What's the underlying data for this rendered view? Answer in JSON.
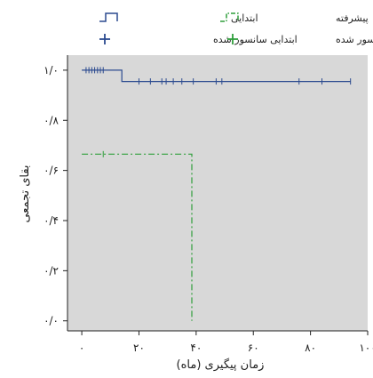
{
  "chart_data": {
    "type": "line",
    "subtype": "kaplan-meier survival curve",
    "xlabel": "زمان پیگیری (ماه)",
    "ylabel": "بقای تجمعی",
    "x_ticks": [
      0,
      20,
      40,
      60,
      80,
      100
    ],
    "x_tick_labels": [
      "۰",
      "۲۰",
      "۴۰",
      "۶۰",
      "۸۰",
      "۱۰۰"
    ],
    "y_ticks": [
      0.0,
      0.2,
      0.4,
      0.6,
      0.8,
      1.0
    ],
    "y_tick_labels": [
      "۰/۰",
      "۰/۲",
      "۰/۴",
      "۰/۶",
      "۰/۸",
      "۱/۰"
    ],
    "xlim": [
      -5,
      100
    ],
    "ylim": [
      -0.04,
      1.06
    ],
    "plot_background": "#d8d8d8",
    "grid": false,
    "legend": {
      "placement": "top",
      "entries": [
        {
          "label": "ابتدایی",
          "kind": "step",
          "color": "#2b4a8f",
          "dash": "solid"
        },
        {
          "label": "پیشرفته",
          "kind": "step",
          "color": "#2e9e3a",
          "dash": "dashdot"
        },
        {
          "label": "ابتدایی سانسور شده",
          "kind": "censored",
          "color": "#2b4a8f"
        },
        {
          "label": "پیشرفته سانسور شده",
          "kind": "censored",
          "color": "#2e9e3a"
        }
      ]
    },
    "series": [
      {
        "name": "ابتدایی",
        "color": "#2b4a8f",
        "dash": "solid",
        "steps": [
          [
            0,
            1.0
          ],
          [
            14,
            1.0
          ],
          [
            14,
            0.955
          ],
          [
            94,
            0.955
          ]
        ],
        "censored": [
          {
            "x": 1.5,
            "y": 1.0
          },
          {
            "x": 2.5,
            "y": 1.0
          },
          {
            "x": 3.5,
            "y": 1.0
          },
          {
            "x": 4.5,
            "y": 1.0
          },
          {
            "x": 5.5,
            "y": 1.0
          },
          {
            "x": 6.5,
            "y": 1.0
          },
          {
            "x": 7.5,
            "y": 1.0
          },
          {
            "x": 20,
            "y": 0.955
          },
          {
            "x": 24,
            "y": 0.955
          },
          {
            "x": 28,
            "y": 0.955
          },
          {
            "x": 29.5,
            "y": 0.955
          },
          {
            "x": 32,
            "y": 0.955
          },
          {
            "x": 35,
            "y": 0.955
          },
          {
            "x": 39,
            "y": 0.955
          },
          {
            "x": 47,
            "y": 0.955
          },
          {
            "x": 49,
            "y": 0.955
          },
          {
            "x": 76,
            "y": 0.955
          },
          {
            "x": 84,
            "y": 0.955
          },
          {
            "x": 94,
            "y": 0.955
          }
        ]
      },
      {
        "name": "پیشرفته",
        "color": "#2e9e3a",
        "dash": "dashdot",
        "steps": [
          [
            0,
            0.665
          ],
          [
            38.5,
            0.665
          ],
          [
            38.5,
            0.0
          ]
        ],
        "censored": [
          {
            "x": 7.5,
            "y": 0.665
          }
        ]
      }
    ]
  }
}
